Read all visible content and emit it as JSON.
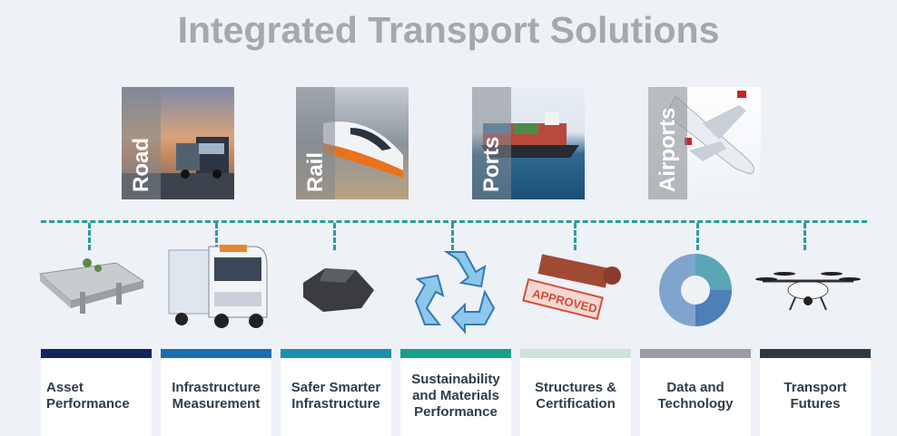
{
  "title": "Integrated Transport Solutions",
  "modes": [
    {
      "label": "Road",
      "icon": "truck-icon"
    },
    {
      "label": "Rail",
      "icon": "train-icon"
    },
    {
      "label": "Ports",
      "icon": "ship-icon"
    },
    {
      "label": "Airports",
      "icon": "airplane-icon"
    }
  ],
  "services": [
    {
      "label": "Asset Performance",
      "color": "#13265a",
      "icon": "bridge-icon"
    },
    {
      "label": "Infrastructure Measurement",
      "color": "#1a6fb2",
      "icon": "survey-truck-icon"
    },
    {
      "label": "Safer Smarter Infrastructure",
      "color": "#1b8fb0",
      "icon": "asphalt-rock-icon"
    },
    {
      "label": "Sustainability and Materials Performance",
      "color": "#1aa08a",
      "icon": "recycle-icon"
    },
    {
      "label": "Structures & Certification",
      "color": "#cfe3d8",
      "icon": "approved-stamp-icon"
    },
    {
      "label": "Data and Technology",
      "color": "#9a9ea4",
      "icon": "donut-chart-icon"
    },
    {
      "label": "Transport Futures",
      "color": "#2d3a44",
      "icon": "drone-icon"
    }
  ],
  "colors": {
    "connector": "#2a9d9a",
    "title": "#a6a8ab"
  }
}
